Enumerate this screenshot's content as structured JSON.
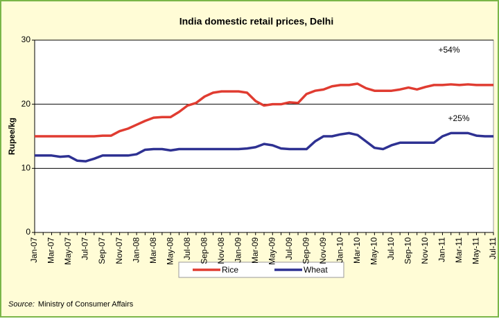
{
  "chart_data": {
    "type": "line",
    "title": "India domestic retail prices, Delhi",
    "y_label": "Rupee/kg",
    "categories": [
      "Jan-07",
      null,
      "Mar-07",
      null,
      "May-07",
      null,
      "Jul-07",
      null,
      "Sep-07",
      null,
      "Nov-07",
      null,
      "Jan-08",
      null,
      "Mar-08",
      null,
      "May-08",
      null,
      "Jul-08",
      null,
      "Sep-08",
      null,
      "Nov-08",
      null,
      "Jan-09",
      null,
      "Mar-09",
      null,
      "May-09",
      null,
      "Jul-09",
      null,
      "Sep-09",
      null,
      "Nov-09",
      null,
      "Jan-10",
      null,
      "Mar-10",
      null,
      "May-10",
      null,
      "Jul-10",
      null,
      "Sep-10",
      null,
      "Nov-10",
      null,
      "Jan-11",
      null,
      "Mar-11",
      null,
      "May-11",
      null,
      "Jul-11"
    ],
    "series": [
      {
        "name": "Rice",
        "color": "#e03c31",
        "values": [
          15,
          15,
          15,
          15,
          15,
          15,
          15,
          15,
          15.1,
          15.1,
          15.8,
          16.2,
          16.8,
          17.4,
          17.9,
          18,
          18,
          18.8,
          19.8,
          20.2,
          21.2,
          21.8,
          22,
          22,
          22,
          21.8,
          20.5,
          19.8,
          20,
          20,
          20.3,
          20.2,
          21.6,
          22.1,
          22.3,
          22.8,
          23,
          23,
          23.2,
          22.5,
          22.1,
          22.1,
          22.1,
          22.3,
          22.6,
          22.3,
          22.7,
          23,
          23,
          23.1,
          23,
          23.1,
          23,
          23,
          23
        ]
      },
      {
        "name": "Wheat",
        "color": "#2e3192",
        "values": [
          12,
          12,
          12,
          11.8,
          11.9,
          11.2,
          11.1,
          11.5,
          12,
          12,
          12,
          12,
          12.2,
          12.9,
          13,
          13,
          12.8,
          13,
          13,
          13,
          13,
          13,
          13,
          13,
          13,
          13.1,
          13.3,
          13.8,
          13.6,
          13.1,
          13,
          13,
          13,
          14.2,
          15,
          15,
          15.3,
          15.5,
          15.2,
          14.2,
          13.2,
          13,
          13.6,
          14,
          14,
          14,
          14,
          14,
          15,
          15.5,
          15.5,
          15.5,
          15.1,
          15,
          15
        ]
      }
    ],
    "annotations": [
      "+54%",
      "+25%"
    ],
    "ylim": [
      0,
      30
    ],
    "yticks": [
      0,
      10,
      20,
      30
    ],
    "grid": true,
    "source_label": "Source:",
    "source": "Ministry of Consumer Affairs"
  }
}
